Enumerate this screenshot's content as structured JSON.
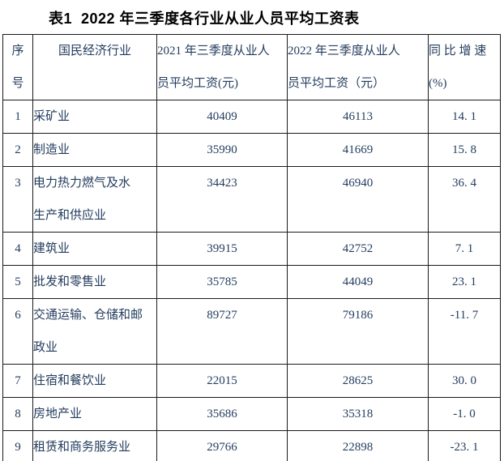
{
  "title": "表1  2022 年三季度各行业从业人员平均工资表",
  "colors": {
    "title_text": "#000000",
    "table_text": "#243d5f",
    "border": "#1a1a1a",
    "background": "#ffffff"
  },
  "table": {
    "headers": {
      "seq": "序\n号",
      "industry": "国民经济行业",
      "wage2021": "2021 年三季度从业人\n员平均工资(元)",
      "wage2022": "2022 年三季度从业人\n员平均工资（元）",
      "growth": "同 比 增 速\n(%)"
    },
    "rows": [
      {
        "seq": "1",
        "industry": "采矿业",
        "wage2021": "40409",
        "wage2022": "46113",
        "growth": "14. 1"
      },
      {
        "seq": "2",
        "industry": "制造业",
        "wage2021": "35990",
        "wage2022": "41669",
        "growth": "15. 8"
      },
      {
        "seq": "3",
        "industry": "电力热力燃气及水\n生产和供应业",
        "wage2021": "34423",
        "wage2022": "46940",
        "growth": "36. 4"
      },
      {
        "seq": "4",
        "industry": "建筑业",
        "wage2021": "39915",
        "wage2022": "42752",
        "growth": "7. 1"
      },
      {
        "seq": "5",
        "industry": "批发和零售业",
        "wage2021": "35785",
        "wage2022": "44049",
        "growth": "23. 1"
      },
      {
        "seq": "6",
        "industry": "交通运输、仓储和邮\n政业",
        "wage2021": "89727",
        "wage2022": "79186",
        "growth": "-11. 7"
      },
      {
        "seq": "7",
        "industry": "住宿和餐饮业",
        "wage2021": "22015",
        "wage2022": "28625",
        "growth": "30. 0"
      },
      {
        "seq": "8",
        "industry": "房地产业",
        "wage2021": "35686",
        "wage2022": "35318",
        "growth": "-1. 0"
      },
      {
        "seq": "9",
        "industry": "租赁和商务服务业",
        "wage2021": "29766",
        "wage2022": "22898",
        "growth": "-23. 1"
      }
    ]
  }
}
